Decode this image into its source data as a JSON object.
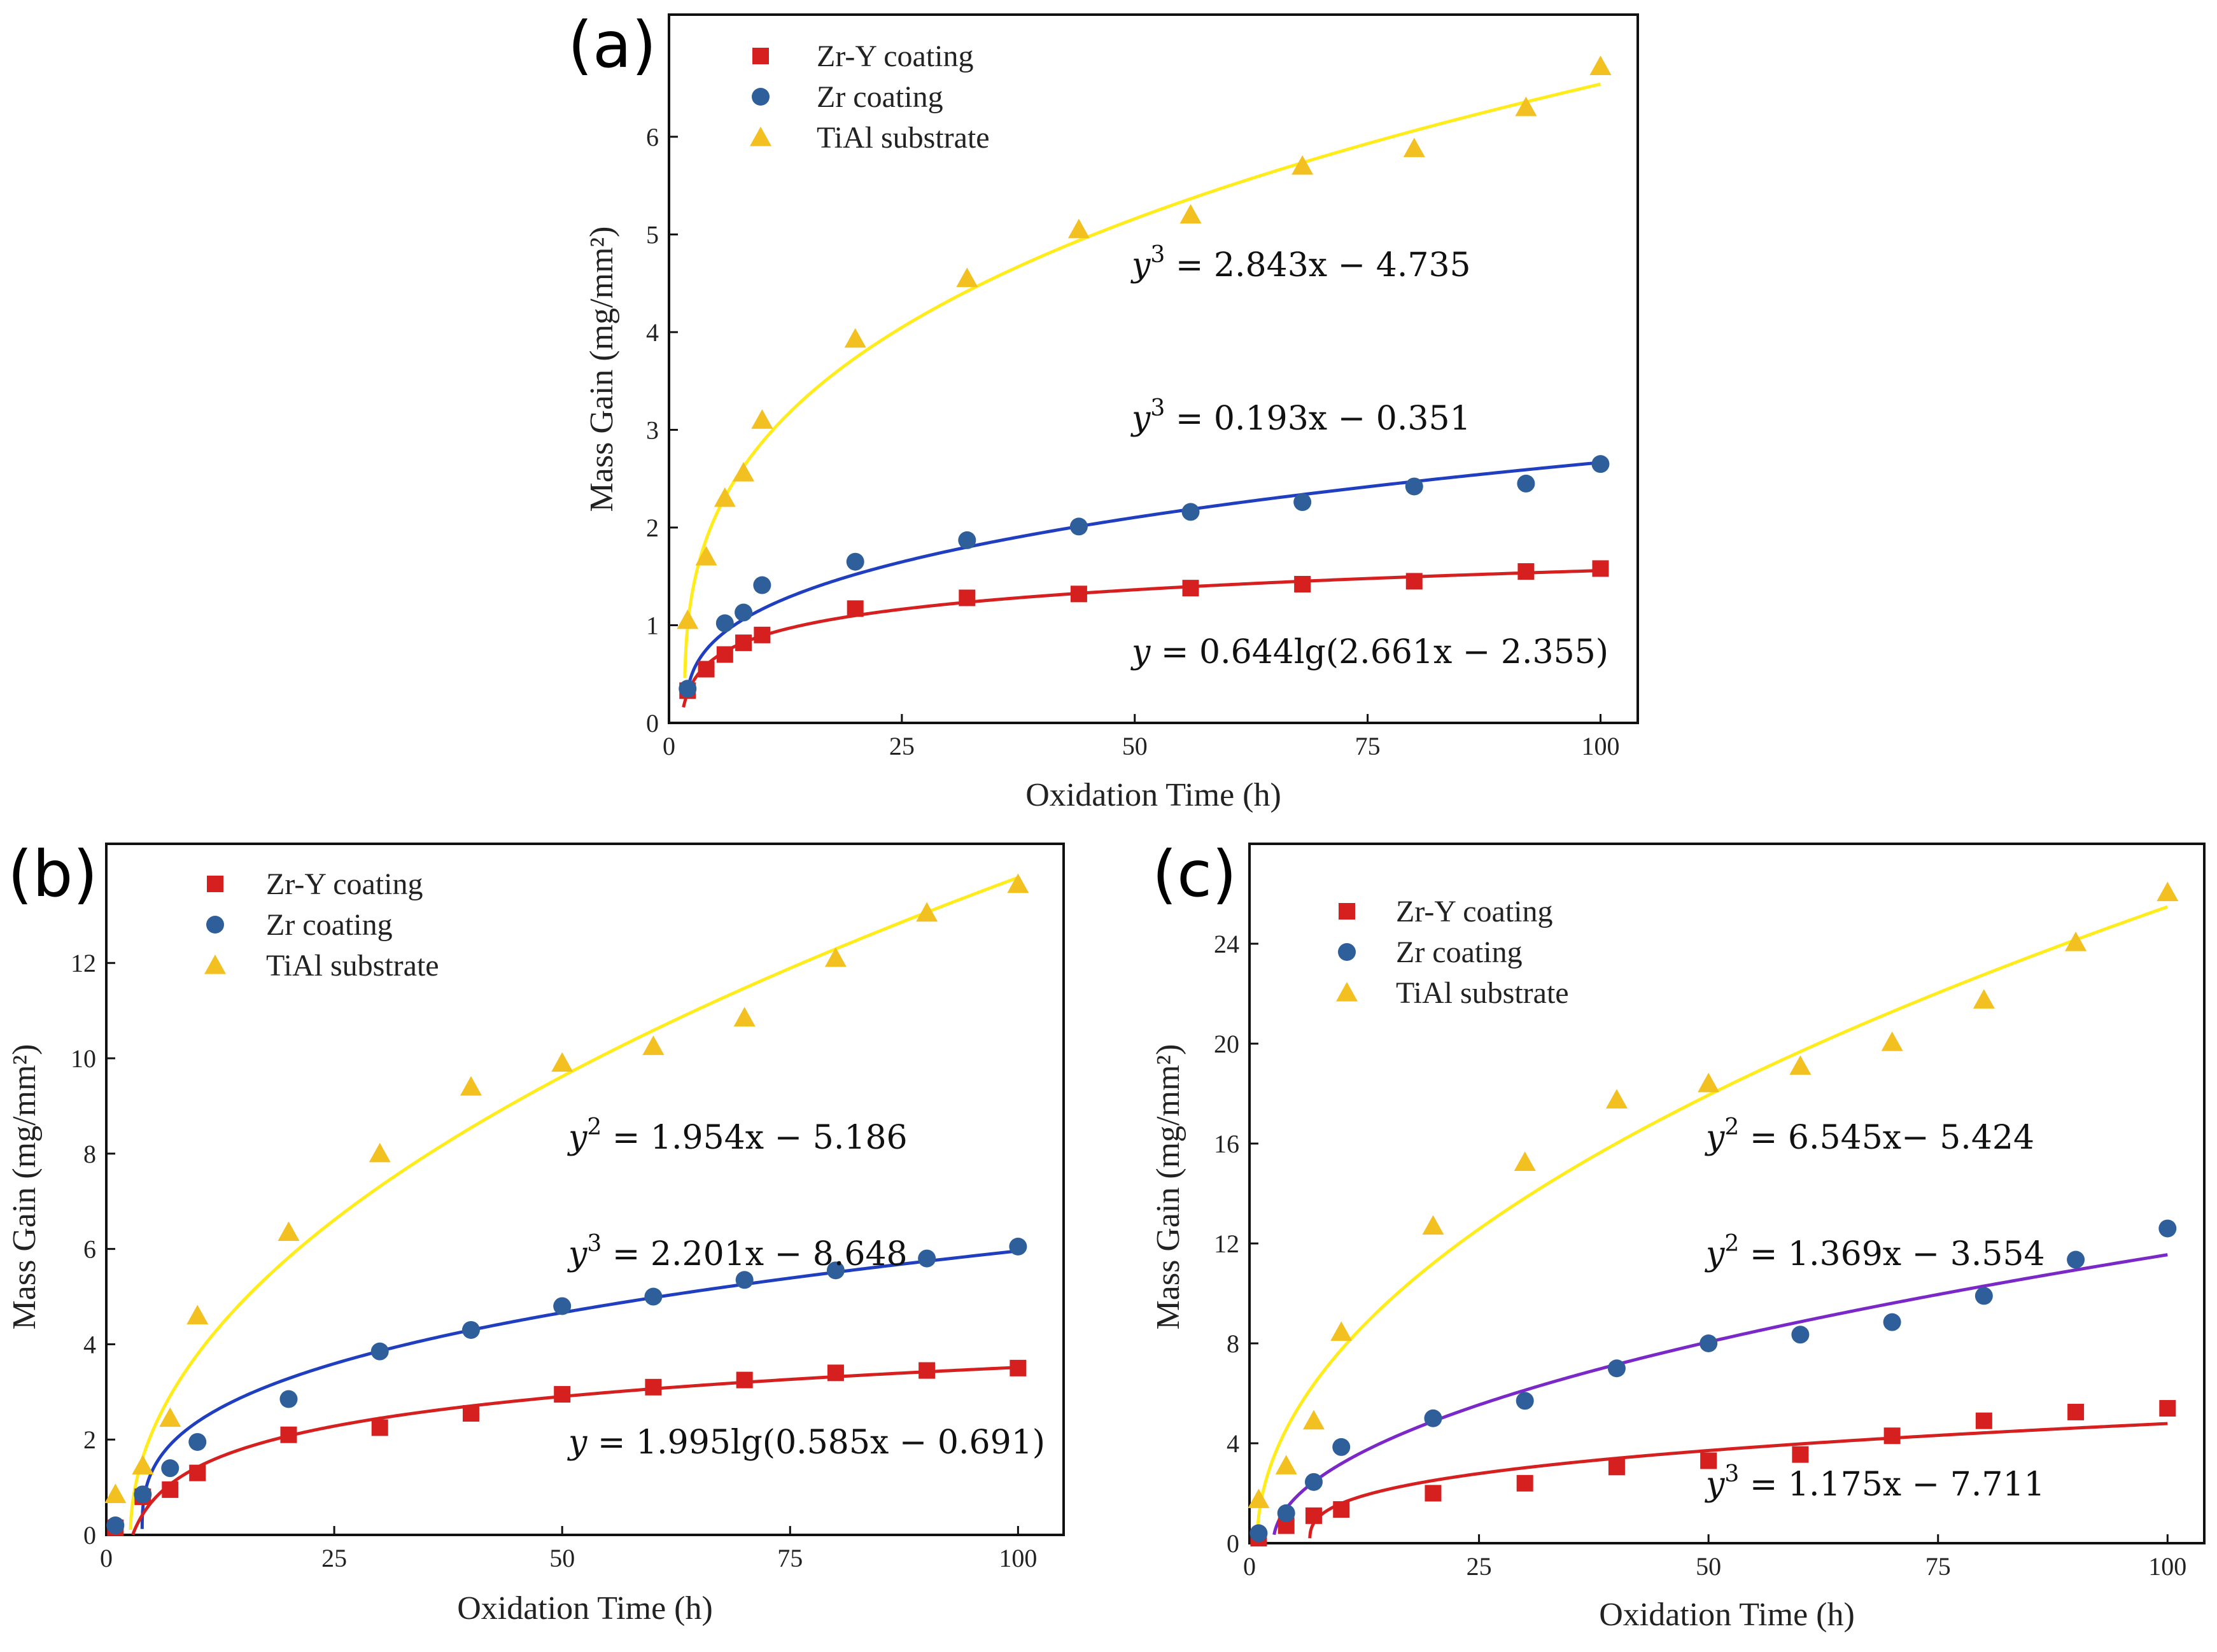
{
  "figure": {
    "series_names": [
      "Zr-Y coating",
      "Zr coating",
      "TiAl substrate"
    ],
    "colors": {
      "zry": "#d62020",
      "zr": "#2f5f9a",
      "tial": "#f2c020",
      "fit_tial": "#ffec1a",
      "fit_zr_ab": "#1f3fc0",
      "fit_zr_c": "#7a28c8",
      "fit_zry": "#d62020"
    }
  },
  "chart_data": [
    {
      "type": "scatter",
      "panel": "(a)",
      "xlabel": "Oxidation Time (h)",
      "ylabel": "Mass Gain (mg/mm²)",
      "xlim": [
        0,
        104
      ],
      "ylim": [
        0,
        7.25
      ],
      "xticks": [
        0,
        25,
        50,
        75,
        100
      ],
      "yticks": [
        0,
        1,
        2,
        3,
        4,
        5,
        6
      ],
      "legend": "top-left",
      "series": [
        {
          "name": "Zr-Y coating",
          "marker": "square",
          "x": [
            2,
            4,
            6,
            8,
            10,
            20,
            32,
            44,
            56,
            68,
            80,
            92,
            100
          ],
          "y": [
            0.33,
            0.55,
            0.7,
            0.82,
            0.9,
            1.17,
            1.28,
            1.32,
            1.38,
            1.42,
            1.45,
            1.55,
            1.58
          ]
        },
        {
          "name": "Zr coating",
          "marker": "circle",
          "x": [
            2,
            6,
            8,
            10,
            20,
            32,
            44,
            56,
            68,
            80,
            92,
            100
          ],
          "y": [
            0.35,
            1.02,
            1.13,
            1.41,
            1.65,
            1.87,
            2.01,
            2.16,
            2.26,
            2.42,
            2.45,
            2.65
          ]
        },
        {
          "name": "TiAl substrate",
          "marker": "triangle",
          "x": [
            2,
            4,
            6,
            8,
            10,
            20,
            32,
            44,
            56,
            68,
            80,
            92,
            100
          ],
          "y": [
            1.05,
            1.7,
            2.3,
            2.56,
            3.1,
            3.93,
            4.55,
            5.05,
            5.2,
            5.7,
            5.88,
            6.3,
            6.72
          ]
        }
      ],
      "fits": [
        {
          "series": "TiAl substrate",
          "kind": "cubic",
          "a": 2.843,
          "b": -4.735,
          "x_start": 1.7,
          "x_end": 100
        },
        {
          "series": "Zr coating",
          "kind": "cubic",
          "a": 0.193,
          "b": -0.351,
          "x_start": 1.9,
          "x_end": 100
        },
        {
          "series": "Zr-Y coating",
          "kind": "log",
          "a": 0.644,
          "k": 2.661,
          "c": -2.355,
          "x_start": 1.55,
          "x_end": 100
        }
      ],
      "equations": [
        {
          "lhs": "y",
          "exp": "3",
          "rhs": " = 2.843x − 4.735"
        },
        {
          "lhs": "y",
          "exp": "3",
          "rhs": " = 0.193x − 0.351"
        },
        {
          "lhs": "y",
          "exp": "",
          "rhs": " = 0.644lg(2.661x − 2.355)"
        }
      ]
    },
    {
      "type": "scatter",
      "panel": "(b)",
      "xlabel": "Oxidation Time (h)",
      "ylabel": "Mass Gain (mg/mm²)",
      "xlim": [
        0,
        105
      ],
      "ylim": [
        0,
        14.5
      ],
      "xticks": [
        0,
        25,
        50,
        75,
        100
      ],
      "yticks": [
        0,
        2,
        4,
        6,
        8,
        10,
        12
      ],
      "legend": "top-left",
      "series": [
        {
          "name": "Zr-Y coating",
          "marker": "square",
          "x": [
            1,
            4,
            7,
            10,
            20,
            30,
            40,
            50,
            60,
            70,
            80,
            90,
            100
          ],
          "y": [
            0.15,
            0.8,
            0.95,
            1.3,
            2.1,
            2.25,
            2.55,
            2.95,
            3.1,
            3.25,
            3.4,
            3.45,
            3.5
          ]
        },
        {
          "name": "Zr coating",
          "marker": "circle",
          "x": [
            1,
            4,
            7,
            10,
            20,
            30,
            40,
            50,
            60,
            70,
            80,
            90,
            100
          ],
          "y": [
            0.2,
            0.85,
            1.4,
            1.95,
            2.85,
            3.85,
            4.3,
            4.8,
            5.0,
            5.35,
            5.55,
            5.8,
            6.05
          ]
        },
        {
          "name": "TiAl substrate",
          "marker": "triangle",
          "x": [
            1,
            4,
            7,
            10,
            20,
            30,
            40,
            50,
            60,
            70,
            80,
            90,
            100
          ],
          "y": [
            0.85,
            1.45,
            2.45,
            4.6,
            6.35,
            8.0,
            9.4,
            9.9,
            10.25,
            10.85,
            12.1,
            13.05,
            13.65
          ]
        }
      ],
      "fits": [
        {
          "series": "TiAl substrate",
          "kind": "square",
          "a": 1.954,
          "b": -5.186,
          "x_start": 2.66,
          "x_end": 100
        },
        {
          "series": "Zr coating",
          "kind": "cubic",
          "a": 2.201,
          "b": -8.648,
          "x_start": 3.93,
          "x_end": 100
        },
        {
          "series": "Zr-Y coating",
          "kind": "log",
          "a": 1.995,
          "k": 0.585,
          "c": -0.691,
          "x_start": 2.9,
          "x_end": 100
        }
      ],
      "equations": [
        {
          "lhs": "y",
          "exp": "2",
          "rhs": " = 1.954x − 5.186"
        },
        {
          "lhs": "y",
          "exp": "3",
          "rhs": " = 2.201x − 8.648"
        },
        {
          "lhs": "y",
          "exp": "",
          "rhs": " = 1.995lg(0.585x − 0.691)"
        }
      ]
    },
    {
      "type": "scatter",
      "panel": "(c)",
      "xlabel": "Oxidation Time (h)",
      "ylabel": "Mass Gain (mg/mm²)",
      "xlim": [
        0,
        104
      ],
      "ylim": [
        0,
        28
      ],
      "xticks": [
        0,
        25,
        50,
        75,
        100
      ],
      "yticks": [
        0,
        4,
        8,
        12,
        16,
        20,
        24
      ],
      "legend": "top-left",
      "series": [
        {
          "name": "Zr-Y coating",
          "marker": "square",
          "x": [
            1,
            4,
            7,
            10,
            20,
            30,
            40,
            50,
            60,
            70,
            80,
            90,
            100
          ],
          "y": [
            0.2,
            0.7,
            1.1,
            1.35,
            2.0,
            2.4,
            3.05,
            3.3,
            3.55,
            4.3,
            4.9,
            5.25,
            5.4
          ]
        },
        {
          "name": "Zr coating",
          "marker": "circle",
          "x": [
            1,
            4,
            7,
            10,
            20,
            30,
            40,
            50,
            60,
            70,
            80,
            90,
            100
          ],
          "y": [
            0.4,
            1.2,
            2.45,
            3.85,
            5.0,
            5.7,
            7.0,
            8.0,
            8.35,
            8.85,
            9.9,
            11.35,
            12.6
          ]
        },
        {
          "name": "TiAl substrate",
          "marker": "triangle",
          "x": [
            1,
            4,
            7,
            10,
            20,
            30,
            40,
            50,
            60,
            70,
            80,
            90,
            100
          ],
          "y": [
            1.75,
            3.1,
            4.9,
            8.45,
            12.7,
            15.25,
            17.75,
            18.4,
            19.1,
            20.05,
            21.75,
            24.05,
            26.05
          ]
        }
      ],
      "fits": [
        {
          "series": "TiAl substrate",
          "kind": "square",
          "a": 6.545,
          "b": -5.424,
          "x_start": 0.88,
          "x_end": 100
        },
        {
          "series": "Zr coating",
          "kind": "square",
          "a": 1.369,
          "b": -3.554,
          "x_start": 2.68,
          "x_end": 100
        },
        {
          "series": "Zr-Y coating",
          "kind": "cubic",
          "a": 1.175,
          "b": -7.711,
          "x_start": 6.56,
          "x_end": 100
        }
      ],
      "equations": [
        {
          "lhs": "y",
          "exp": "2",
          "rhs": " = 6.545x− 5.424"
        },
        {
          "lhs": "y",
          "exp": "2",
          "rhs": " = 1.369x − 3.554"
        },
        {
          "lhs": "y",
          "exp": "3",
          "rhs": " = 1.175x − 7.711"
        }
      ]
    }
  ]
}
